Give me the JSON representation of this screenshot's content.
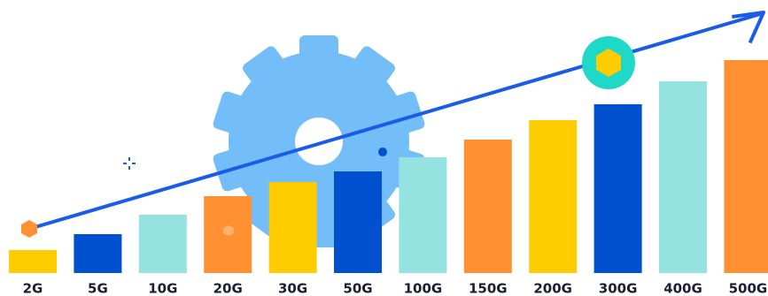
{
  "chart_data": {
    "type": "bar",
    "categories": [
      "2G",
      "5G",
      "10G",
      "20G",
      "30G",
      "50G",
      "100G",
      "150G",
      "200G",
      "300G",
      "400G",
      "500G"
    ],
    "values": [
      26,
      44,
      66,
      87,
      103,
      115,
      131,
      151,
      173,
      191,
      217,
      241
    ],
    "colors": [
      "#ffcc00",
      "#0050d0",
      "#95e3e0",
      "#ff9133",
      "#ffcc00",
      "#0050d0",
      "#95e3e0",
      "#ff9133",
      "#ffcc00",
      "#0050d0",
      "#95e3e0",
      "#ff9133"
    ]
  }
}
